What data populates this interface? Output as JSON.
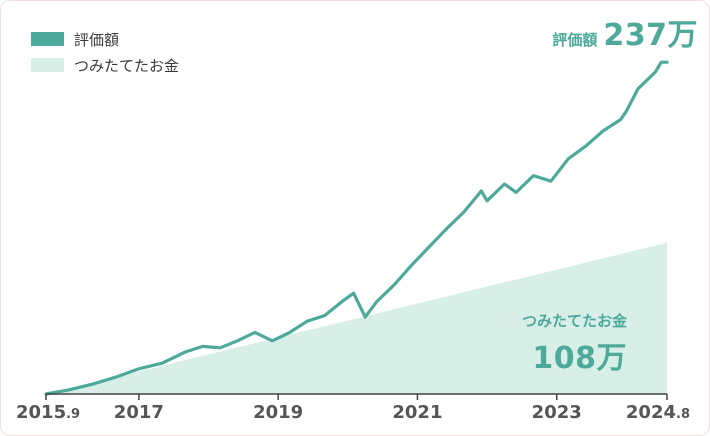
{
  "legend": {
    "value_label": "評価額",
    "contribution_label": "つみたてたお金"
  },
  "callouts": {
    "value_label": "評価額",
    "value_amount": "237万",
    "contribution_label": "つみたてたお金",
    "contribution_amount": "108万"
  },
  "colors": {
    "line": "#4da99a",
    "area": "#d8efe8",
    "axis": "#444444",
    "text": "#555555"
  },
  "chart_data": {
    "type": "line",
    "unit": "万円",
    "x_ticks": [
      {
        "main": "2015",
        "sub": ".9"
      },
      {
        "main": "2017",
        "sub": ""
      },
      {
        "main": "2019",
        "sub": ""
      },
      {
        "main": "2021",
        "sub": ""
      },
      {
        "main": "2023",
        "sub": ""
      },
      {
        "main": "2024",
        "sub": ".8"
      }
    ],
    "xlim": [
      "2015-09",
      "2024-08"
    ],
    "ylim": [
      0,
      260
    ],
    "series": [
      {
        "name": "評価額",
        "kind": "line",
        "points": [
          [
            "2015-09",
            0
          ],
          [
            "2016-01",
            3
          ],
          [
            "2016-05",
            7
          ],
          [
            "2016-09",
            12
          ],
          [
            "2017-01",
            18
          ],
          [
            "2017-05",
            22
          ],
          [
            "2017-09",
            30
          ],
          [
            "2017-12",
            34
          ],
          [
            "2018-03",
            33
          ],
          [
            "2018-06",
            38
          ],
          [
            "2018-09",
            44
          ],
          [
            "2018-12",
            38
          ],
          [
            "2019-03",
            44
          ],
          [
            "2019-06",
            52
          ],
          [
            "2019-09",
            56
          ],
          [
            "2019-12",
            66
          ],
          [
            "2020-02",
            72
          ],
          [
            "2020-04",
            55
          ],
          [
            "2020-06",
            66
          ],
          [
            "2020-09",
            78
          ],
          [
            "2020-12",
            92
          ],
          [
            "2021-03",
            105
          ],
          [
            "2021-06",
            118
          ],
          [
            "2021-09",
            130
          ],
          [
            "2021-12",
            145
          ],
          [
            "2022-01",
            138
          ],
          [
            "2022-04",
            150
          ],
          [
            "2022-06",
            144
          ],
          [
            "2022-09",
            156
          ],
          [
            "2022-12",
            152
          ],
          [
            "2023-03",
            168
          ],
          [
            "2023-06",
            177
          ],
          [
            "2023-09",
            188
          ],
          [
            "2023-12",
            196
          ],
          [
            "2024-01",
            202
          ],
          [
            "2024-03",
            218
          ],
          [
            "2024-06",
            230
          ],
          [
            "2024-07",
            237
          ],
          [
            "2024-08",
            237
          ]
        ]
      },
      {
        "name": "つみたてたお金",
        "kind": "area",
        "points": [
          [
            "2015-09",
            0
          ],
          [
            "2024-08",
            108
          ]
        ]
      }
    ]
  }
}
